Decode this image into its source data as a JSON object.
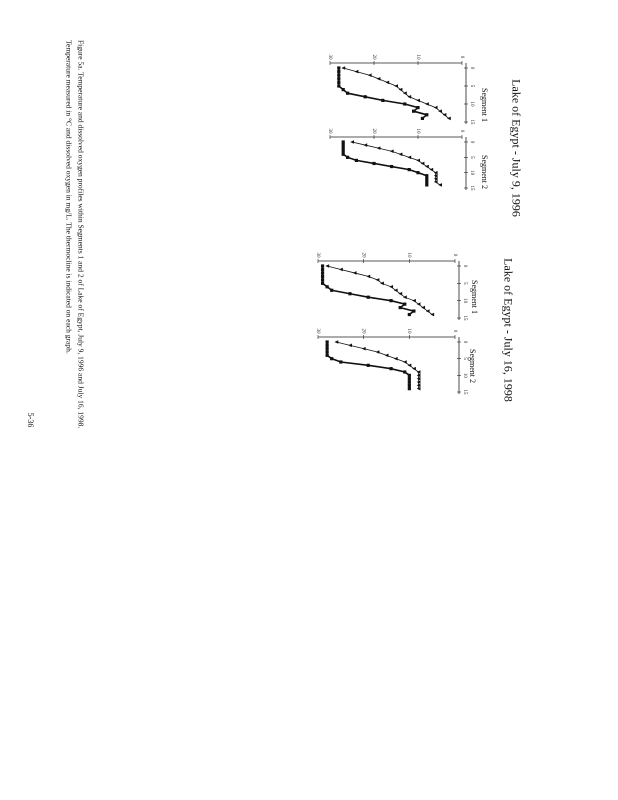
{
  "figure": {
    "caption": [
      "Figure 5a. Temperature and dissolved oxygen profiles within Segments 1 and 2 of Lake of Egypt, July 9, 1996 and July 16, 1998.",
      "Temperature measured in °C and dissolved oxygen in mg/L. The thermocline is indicated on each graph."
    ],
    "page_number": "5-36",
    "panels": [
      {
        "title": "Lake of Egypt - July 9, 1996",
        "charts": [
          {
            "type": "line",
            "label": "Segment 1",
            "x": [
              0,
              1,
              2,
              3,
              4,
              5,
              6,
              7,
              8,
              9,
              10,
              11,
              12,
              13,
              14
            ],
            "xlim": [
              0,
              15
            ],
            "xticks": [
              0,
              5,
              10,
              15
            ],
            "ylim": [
              0,
              30
            ],
            "yticks": [
              0,
              10,
              20,
              30
            ],
            "series": [
              {
                "marker": "square",
                "color": "#111111",
                "values": [
                  28,
                  28,
                  28,
                  28,
                  28,
                  28,
                  27,
                  26,
                  22,
                  18,
                  13,
                  10,
                  11,
                  8,
                  9
                ]
              },
              {
                "marker": "triangle",
                "color": "#111111",
                "values": [
                  27,
                  24,
                  21,
                  19,
                  17,
                  15,
                  14,
                  13,
                  12,
                  10,
                  8,
                  6,
                  5,
                  4,
                  3
                ]
              }
            ]
          },
          {
            "type": "line",
            "label": "Segment 2",
            "x": [
              0,
              1,
              2,
              3,
              4,
              5,
              6,
              7,
              8,
              9,
              10,
              11,
              12,
              13,
              14
            ],
            "xlim": [
              0,
              15
            ],
            "xticks": [
              0,
              5,
              10,
              15
            ],
            "ylim": [
              0,
              30
            ],
            "yticks": [
              0,
              10,
              20,
              30
            ],
            "series": [
              {
                "marker": "square",
                "color": "#111111",
                "values": [
                  27,
                  27,
                  27,
                  27,
                  27,
                  26,
                  24,
                  20,
                  16,
                  12,
                  10,
                  8,
                  8,
                  8,
                  8
                ]
              },
              {
                "marker": "triangle",
                "color": "#111111",
                "values": [
                  25,
                  22,
                  19,
                  16,
                  14,
                  12,
                  10,
                  9,
                  8,
                  7,
                  6,
                  6,
                  6,
                  6,
                  5
                ]
              }
            ]
          }
        ]
      },
      {
        "title": "Lake of Egypt - July 16, 1998",
        "charts": [
          {
            "type": "line",
            "label": "Segment 1",
            "x": [
              0,
              1,
              2,
              3,
              4,
              5,
              6,
              7,
              8,
              9,
              10,
              11,
              12,
              13,
              14
            ],
            "xlim": [
              0,
              15
            ],
            "xticks": [
              0,
              5,
              10,
              15
            ],
            "ylim": [
              0,
              30
            ],
            "yticks": [
              0,
              10,
              20,
              30
            ],
            "series": [
              {
                "marker": "square",
                "color": "#111111",
                "values": [
                  29,
                  29,
                  29,
                  29,
                  29,
                  29,
                  28,
                  27,
                  23,
                  19,
                  14,
                  11,
                  12,
                  9,
                  10
                ]
              },
              {
                "marker": "triangle",
                "color": "#111111",
                "values": [
                  28,
                  25,
                  22,
                  19,
                  17,
                  16,
                  14,
                  13,
                  12,
                  11,
                  9,
                  8,
                  7,
                  6,
                  5
                ]
              }
            ]
          },
          {
            "type": "line",
            "label": "Segment 2",
            "x": [
              0,
              1,
              2,
              3,
              4,
              5,
              6,
              7,
              8,
              9,
              10,
              11,
              12,
              13,
              14
            ],
            "xlim": [
              0,
              15
            ],
            "xticks": [
              0,
              5,
              10,
              15
            ],
            "ylim": [
              0,
              30
            ],
            "yticks": [
              0,
              10,
              20,
              30
            ],
            "series": [
              {
                "marker": "square",
                "color": "#111111",
                "values": [
                  28,
                  28,
                  28,
                  28,
                  28,
                  27,
                  25,
                  19,
                  14,
                  11,
                  10,
                  10,
                  10,
                  10,
                  10
                ]
              },
              {
                "marker": "triangle",
                "color": "#111111",
                "values": [
                  26,
                  23,
                  20,
                  17,
                  15,
                  13,
                  11,
                  10,
                  9,
                  8,
                  8,
                  8,
                  8,
                  8,
                  8
                ]
              }
            ]
          }
        ]
      }
    ]
  }
}
